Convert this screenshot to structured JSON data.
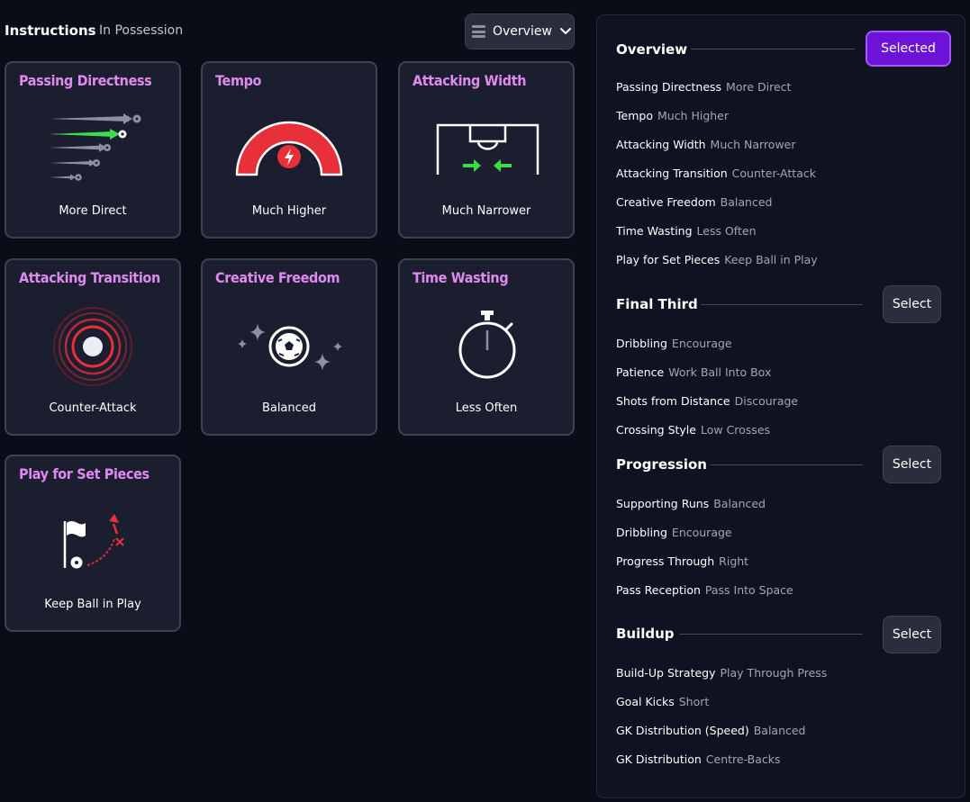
{
  "header": {
    "title": "Instructions",
    "subtitle": "In Possession",
    "view_dropdown": {
      "icon": "list-icon",
      "label": "Overview",
      "chevron": "chevron-down-icon"
    }
  },
  "cards": [
    {
      "title": "Passing Directness",
      "value": "More Direct",
      "icon": "passing-arrows-icon"
    },
    {
      "title": "Tempo",
      "value": "Much Higher",
      "icon": "tempo-gauge-icon"
    },
    {
      "title": "Attacking Width",
      "value": "Much Narrower",
      "icon": "pitch-width-icon"
    },
    {
      "title": "Attacking Transition",
      "value": "Counter-Attack",
      "icon": "transition-rings-icon"
    },
    {
      "title": "Creative Freedom",
      "value": "Balanced",
      "icon": "ball-sparkle-icon"
    },
    {
      "title": "Time Wasting",
      "value": "Less Often",
      "icon": "stopwatch-icon"
    },
    {
      "title": "Play for Set Pieces",
      "value": "Keep Ball in Play",
      "icon": "corner-flag-icon"
    }
  ],
  "colors": {
    "accent_title": "#e089ef",
    "selected_button": "#6d13d8",
    "gauge_red": "#e8303a",
    "arrow_green": "#3ddc4a"
  },
  "panel": {
    "sections": [
      {
        "title": "Overview",
        "button": "Selected",
        "rows": [
          {
            "key": "Passing Directness",
            "value": "More Direct"
          },
          {
            "key": "Tempo",
            "value": "Much Higher"
          },
          {
            "key": "Attacking Width",
            "value": "Much Narrower"
          },
          {
            "key": "Attacking Transition",
            "value": "Counter-Attack"
          },
          {
            "key": "Creative Freedom",
            "value": "Balanced"
          },
          {
            "key": "Time Wasting",
            "value": "Less Often"
          },
          {
            "key": "Play for Set Pieces",
            "value": "Keep Ball in Play"
          }
        ]
      },
      {
        "title": "Final Third",
        "button": "Select",
        "rows": [
          {
            "key": "Dribbling",
            "value": "Encourage"
          },
          {
            "key": "Patience",
            "value": "Work Ball Into Box"
          },
          {
            "key": "Shots from Distance",
            "value": "Discourage"
          },
          {
            "key": "Crossing Style",
            "value": "Low Crosses"
          }
        ]
      },
      {
        "title": "Progression",
        "button": "Select",
        "rows": [
          {
            "key": "Supporting Runs",
            "value": "Balanced"
          },
          {
            "key": "Dribbling",
            "value": "Encourage"
          },
          {
            "key": "Progress Through",
            "value": "Right"
          },
          {
            "key": "Pass Reception",
            "value": "Pass Into Space"
          }
        ]
      },
      {
        "title": "Buildup",
        "button": "Select",
        "rows": [
          {
            "key": "Build-Up Strategy",
            "value": "Play Through Press"
          },
          {
            "key": "Goal Kicks",
            "value": "Short"
          },
          {
            "key": "GK Distribution (Speed)",
            "value": "Balanced"
          },
          {
            "key": "GK Distribution",
            "value": "Centre-Backs"
          }
        ]
      }
    ]
  }
}
